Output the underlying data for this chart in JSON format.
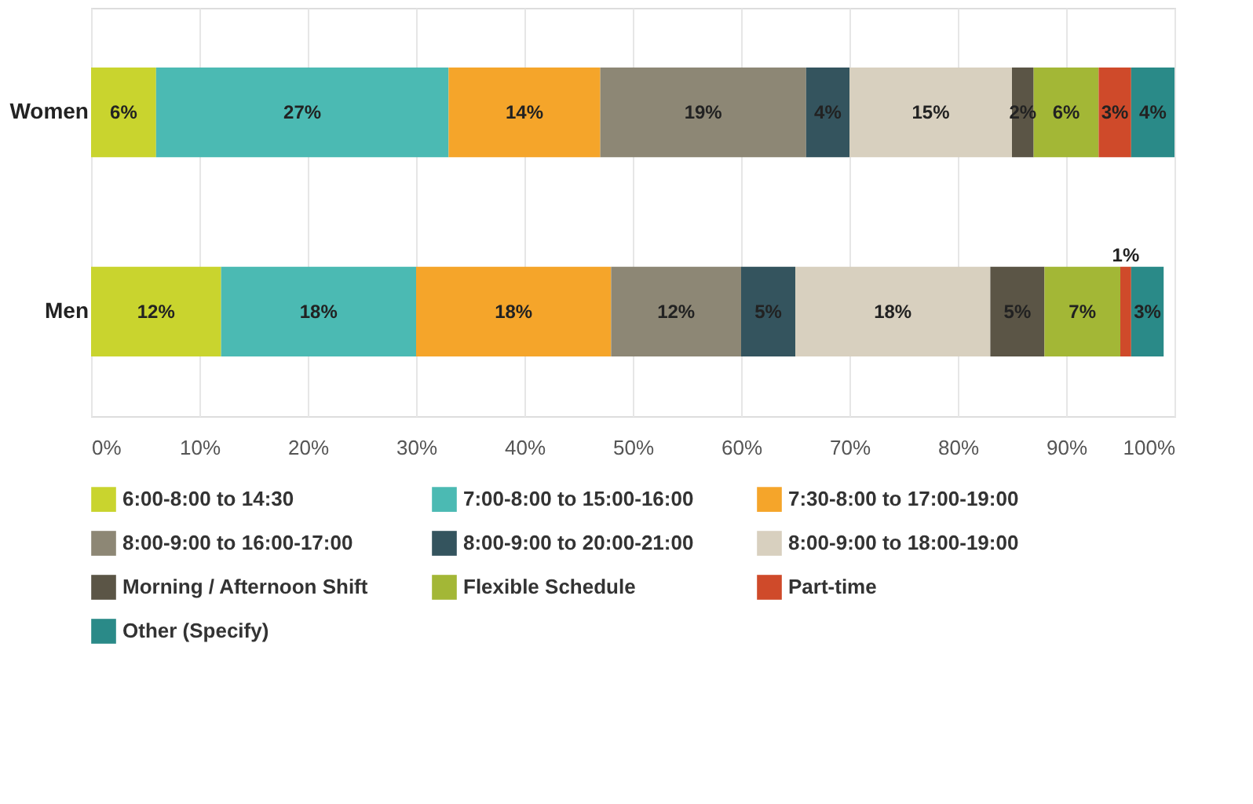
{
  "chart_data": {
    "type": "bar",
    "orientation": "horizontal",
    "stacked": true,
    "categories": [
      "Women",
      "Men"
    ],
    "series": [
      {
        "name": "6:00-8:00 to 14:30",
        "color": "#c9d42e",
        "values": [
          6,
          12
        ],
        "value_labels": [
          "6%",
          "12%"
        ]
      },
      {
        "name": "7:00-8:00 to 15:00-16:00",
        "color": "#4bbab3",
        "values": [
          27,
          18
        ],
        "value_labels": [
          "27%",
          "18%"
        ]
      },
      {
        "name": "7:30-8:00 to 17:00-19:00",
        "color": "#f5a52a",
        "values": [
          14,
          18
        ],
        "value_labels": [
          "14%",
          "18%"
        ]
      },
      {
        "name": "8:00-9:00 to 16:00-17:00",
        "color": "#8d8775",
        "values": [
          19,
          12
        ],
        "value_labels": [
          "19%",
          "12%"
        ]
      },
      {
        "name": "8:00-9:00 to 20:00-21:00",
        "color": "#34545e",
        "values": [
          4,
          5
        ],
        "value_labels": [
          "4%",
          "5%"
        ]
      },
      {
        "name": "8:00-9:00 to 18:00-19:00",
        "color": "#d8d0bf",
        "values": [
          15,
          18
        ],
        "value_labels": [
          "15%",
          "18%"
        ]
      },
      {
        "name": "Morning / Afternoon Shift",
        "color": "#5b5546",
        "values": [
          2,
          5
        ],
        "value_labels": [
          "2%",
          "5%"
        ]
      },
      {
        "name": "Flexible Schedule",
        "color": "#a3b736",
        "values": [
          6,
          7
        ],
        "value_labels": [
          "6%",
          "7%"
        ]
      },
      {
        "name": "Part-time",
        "color": "#cf4a2a",
        "values": [
          3,
          1
        ],
        "value_labels": [
          "3%",
          "1%"
        ]
      },
      {
        "name": "Other (Specify)",
        "color": "#2a8a88",
        "values": [
          4,
          3
        ],
        "value_labels": [
          "4%",
          "3%"
        ]
      }
    ],
    "xlim": [
      0,
      100
    ],
    "xticks": [
      {
        "value": 0,
        "label": "0%"
      },
      {
        "value": 10,
        "label": "10%"
      },
      {
        "value": 20,
        "label": "20%"
      },
      {
        "value": 30,
        "label": "30%"
      },
      {
        "value": 40,
        "label": "40%"
      },
      {
        "value": 50,
        "label": "50%"
      },
      {
        "value": 60,
        "label": "60%"
      },
      {
        "value": 70,
        "label": "70%"
      },
      {
        "value": 80,
        "label": "80%"
      },
      {
        "value": 90,
        "label": "90%"
      },
      {
        "value": 100,
        "label": "100%"
      }
    ],
    "grid": "x",
    "legend": "bottom"
  }
}
